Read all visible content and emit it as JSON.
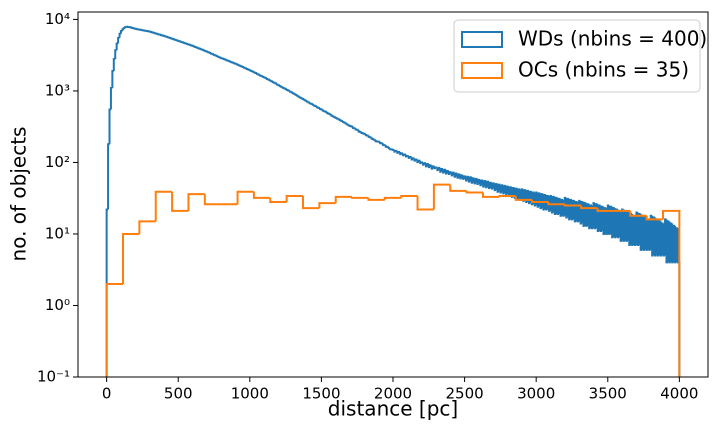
{
  "chart_data": {
    "type": "histogram",
    "xlabel": "distance [pc]",
    "ylabel": "no. of objects",
    "xlim": [
      -200,
      4200
    ],
    "xticks": [
      0,
      500,
      1000,
      1500,
      2000,
      2500,
      3000,
      3500,
      4000
    ],
    "ylim": [
      0.1,
      12700
    ],
    "log_y": true,
    "yticks": [
      {
        "value": 0.1,
        "label": "10⁻¹"
      },
      {
        "value": 1,
        "label": "10⁰"
      },
      {
        "value": 10,
        "label": "10¹"
      },
      {
        "value": 100,
        "label": "10²"
      },
      {
        "value": 1000,
        "label": "10³"
      },
      {
        "value": 10000,
        "label": "10⁴"
      }
    ],
    "legend": "upper right",
    "series": [
      {
        "name": "WDs (nbins = 400)",
        "color": "#1f77b4",
        "bins": [
          0,
          10,
          20,
          30,
          40,
          50,
          60,
          70,
          80,
          90,
          100,
          110,
          120,
          130,
          140,
          150,
          160,
          170,
          180,
          190,
          200,
          210,
          220,
          230,
          240,
          250,
          260,
          270,
          280,
          290,
          300,
          310,
          320,
          330,
          340,
          350,
          360,
          370,
          380,
          390,
          400,
          410,
          420,
          430,
          440,
          450,
          460,
          470,
          480,
          490,
          500,
          510,
          520,
          530,
          540,
          550,
          560,
          570,
          580,
          590,
          600,
          610,
          620,
          630,
          640,
          650,
          660,
          670,
          680,
          690,
          700,
          710,
          720,
          730,
          740,
          750,
          760,
          770,
          780,
          790,
          800,
          810,
          820,
          830,
          840,
          850,
          860,
          870,
          880,
          890,
          900,
          910,
          920,
          930,
          940,
          950,
          960,
          970,
          980,
          990,
          1000,
          1010,
          1020,
          1030,
          1040,
          1050,
          1060,
          1070,
          1080,
          1090,
          1100,
          1110,
          1120,
          1130,
          1140,
          1150,
          1160,
          1170,
          1180,
          1190,
          1200,
          1210,
          1220,
          1230,
          1240,
          1250,
          1260,
          1270,
          1280,
          1290,
          1300,
          1310,
          1320,
          1330,
          1340,
          1350,
          1360,
          1370,
          1380,
          1390,
          1400,
          1410,
          1420,
          1430,
          1440,
          1450,
          1460,
          1470,
          1480,
          1490,
          1500,
          1510,
          1520,
          1530,
          1540,
          1550,
          1560,
          1570,
          1580,
          1590,
          1600,
          1610,
          1620,
          1630,
          1640,
          1650,
          1660,
          1670,
          1680,
          1690,
          1700,
          1710,
          1720,
          1730,
          1740,
          1750,
          1760,
          1770,
          1780,
          1790,
          1800,
          1810,
          1820,
          1830,
          1840,
          1850,
          1860,
          1870,
          1880,
          1890,
          1900,
          1910,
          1920,
          1930,
          1940,
          1950,
          1960,
          1970,
          1980,
          1990,
          2000,
          2010,
          2020,
          2030,
          2040,
          2050,
          2060,
          2070,
          2080,
          2090,
          2100,
          2110,
          2120,
          2130,
          2140,
          2150,
          2160,
          2170,
          2180,
          2190,
          2200,
          2210,
          2220,
          2230,
          2240,
          2250,
          2260,
          2270,
          2280,
          2290,
          2300,
          2310,
          2320,
          2330,
          2340,
          2350,
          2360,
          2370,
          2380,
          2390,
          2400,
          2410,
          2420,
          2430,
          2440,
          2450,
          2460,
          2470,
          2480,
          2490,
          2500,
          2510,
          2520,
          2530,
          2540,
          2550,
          2560,
          2570,
          2580,
          2590,
          2600,
          2610,
          2620,
          2630,
          2640,
          2650,
          2660,
          2670,
          2680,
          2690,
          2700,
          2710,
          2720,
          2730,
          2740,
          2750,
          2760,
          2770,
          2780,
          2790,
          2800,
          2810,
          2820,
          2830,
          2840,
          2850,
          2860,
          2870,
          2880,
          2890,
          2900,
          2910,
          2920,
          2930,
          2940,
          2950,
          2960,
          2970,
          2980,
          2990,
          3000,
          3010,
          3020,
          3030,
          3040,
          3050,
          3060,
          3070,
          3080,
          3090,
          3100,
          3110,
          3120,
          3130,
          3140,
          3150,
          3160,
          3170,
          3180,
          3190,
          3200,
          3210,
          3220,
          3230,
          3240,
          3250,
          3260,
          3270,
          3280,
          3290,
          3300,
          3310,
          3320,
          3330,
          3340,
          3350,
          3360,
          3370,
          3380,
          3390,
          3400,
          3410,
          3420,
          3430,
          3440,
          3450,
          3460,
          3470,
          3480,
          3490,
          3500,
          3510,
          3520,
          3530,
          3540,
          3550,
          3560,
          3570,
          3580,
          3590,
          3600,
          3610,
          3620,
          3630,
          3640,
          3650,
          3660,
          3670,
          3680,
          3690,
          3700,
          3710,
          3720,
          3730,
          3740,
          3750,
          3760,
          3770,
          3780,
          3790,
          3800,
          3810,
          3820,
          3830,
          3840,
          3850,
          3860,
          3870,
          3880,
          3890,
          3900,
          3910,
          3920,
          3930,
          3940,
          3950,
          3960,
          3970,
          3980,
          3990,
          4000
        ],
        "values": [
          22,
          180,
          550,
          1100,
          1900,
          2800,
          3700,
          4600,
          5500,
          6300,
          6900,
          7300,
          7600,
          7800,
          7900,
          7850,
          7800,
          7700,
          7600,
          7500,
          7400,
          7330,
          7270,
          7200,
          7130,
          7070,
          7000,
          6940,
          6880,
          6820,
          6760,
          6660,
          6570,
          6480,
          6390,
          6300,
          6210,
          6130,
          6040,
          5960,
          5890,
          5790,
          5700,
          5610,
          5520,
          5430,
          5340,
          5260,
          5170,
          5090,
          5010,
          4930,
          4860,
          4780,
          4700,
          4630,
          4550,
          4480,
          4410,
          4340,
          4270,
          4190,
          4110,
          4040,
          3960,
          3890,
          3820,
          3750,
          3680,
          3610,
          3550,
          3480,
          3400,
          3330,
          3260,
          3200,
          3130,
          3070,
          3000,
          2940,
          2880,
          2830,
          2780,
          2730,
          2680,
          2630,
          2580,
          2530,
          2490,
          2440,
          2400,
          2350,
          2300,
          2250,
          2210,
          2160,
          2120,
          2070,
          2030,
          1990,
          1950,
          1900,
          1860,
          1820,
          1780,
          1730,
          1690,
          1650,
          1620,
          1580,
          1550,
          1510,
          1470,
          1440,
          1400,
          1370,
          1330,
          1300,
          1270,
          1230,
          1200,
          1170,
          1140,
          1110,
          1090,
          1060,
          1030,
          1010,
          980,
          960,
          930,
          910,
          880,
          860,
          830,
          810,
          790,
          770,
          750,
          730,
          710,
          690,
          670,
          660,
          640,
          620,
          610,
          590,
          580,
          560,
          550,
          530,
          520,
          510,
          490,
          480,
          470,
          450,
          440,
          430,
          420,
          410,
          400,
          390,
          380,
          370,
          360,
          350,
          340,
          330,
          324,
          318,
          305,
          300,
          290,
          285,
          270,
          268,
          258,
          255,
          251,
          240,
          238,
          228,
          225,
          215,
          212,
          205,
          198,
          196,
          195,
          186,
          185,
          176,
          174,
          166,
          165,
          158,
          153,
          152,
          150,
          142,
          145,
          136,
          140,
          131,
          134,
          126,
          129,
          121,
          123,
          116,
          119,
          110,
          114,
          106,
          110,
          101,
          106,
          98,
          100,
          93,
          98,
          88,
          95,
          86,
          91,
          82,
          88,
          83,
          85,
          78,
          84,
          74,
          81,
          72,
          79,
          70,
          76,
          69,
          73,
          66,
          72,
          63,
          70,
          61,
          68,
          60,
          66,
          59,
          64,
          56,
          63,
          54,
          62,
          52,
          60,
          51,
          59,
          50,
          57,
          48,
          56,
          46,
          55,
          45,
          54,
          44,
          52,
          43,
          51,
          41,
          50,
          39,
          49,
          38,
          48,
          37,
          47,
          36,
          46,
          35,
          45,
          33,
          44,
          32,
          43,
          31,
          42,
          30,
          42,
          29,
          41,
          28,
          40,
          27,
          39,
          26,
          38,
          25,
          38,
          24,
          37,
          23,
          36,
          22,
          35,
          22,
          34,
          21,
          34,
          20,
          33,
          19,
          32,
          19,
          31,
          18,
          30,
          18,
          32,
          17,
          31,
          16,
          30,
          16,
          29,
          15,
          28,
          15,
          29,
          14,
          28,
          13,
          27,
          13,
          26,
          12,
          25,
          12,
          27,
          12,
          26,
          11,
          25,
          11,
          24,
          10,
          23,
          10,
          25,
          10,
          24,
          9,
          23,
          9,
          22,
          9,
          21,
          8,
          22,
          8,
          21,
          8,
          20,
          7,
          19,
          7,
          18,
          7,
          20,
          7,
          19,
          6,
          18,
          6,
          17,
          6,
          16,
          6,
          18,
          5,
          17,
          5,
          16,
          5,
          15,
          5,
          14,
          5,
          16,
          4,
          15,
          4,
          14,
          4,
          13,
          4,
          12,
          4
        ]
      },
      {
        "name": "OCs (nbins = 35)",
        "color": "#ff7f0e",
        "bins": [
          0,
          114.29,
          228.57,
          342.86,
          457.14,
          571.43,
          685.71,
          800,
          914.29,
          1028.57,
          1142.86,
          1257.14,
          1371.43,
          1485.71,
          1600,
          1714.29,
          1828.57,
          1942.86,
          2057.14,
          2171.43,
          2285.71,
          2400,
          2514.29,
          2628.57,
          2742.86,
          2857.14,
          2971.43,
          3085.71,
          3200,
          3314.29,
          3428.57,
          3542.86,
          3657.14,
          3771.43,
          3885.71,
          4000
        ],
        "values": [
          2,
          10,
          15,
          39,
          21,
          36,
          26,
          26,
          39,
          32,
          28,
          34,
          23,
          27,
          33,
          32,
          30,
          32,
          34,
          22,
          49,
          40,
          38,
          33,
          34,
          30,
          28,
          26,
          25,
          23,
          21,
          21,
          18,
          16,
          21
        ]
      }
    ]
  }
}
